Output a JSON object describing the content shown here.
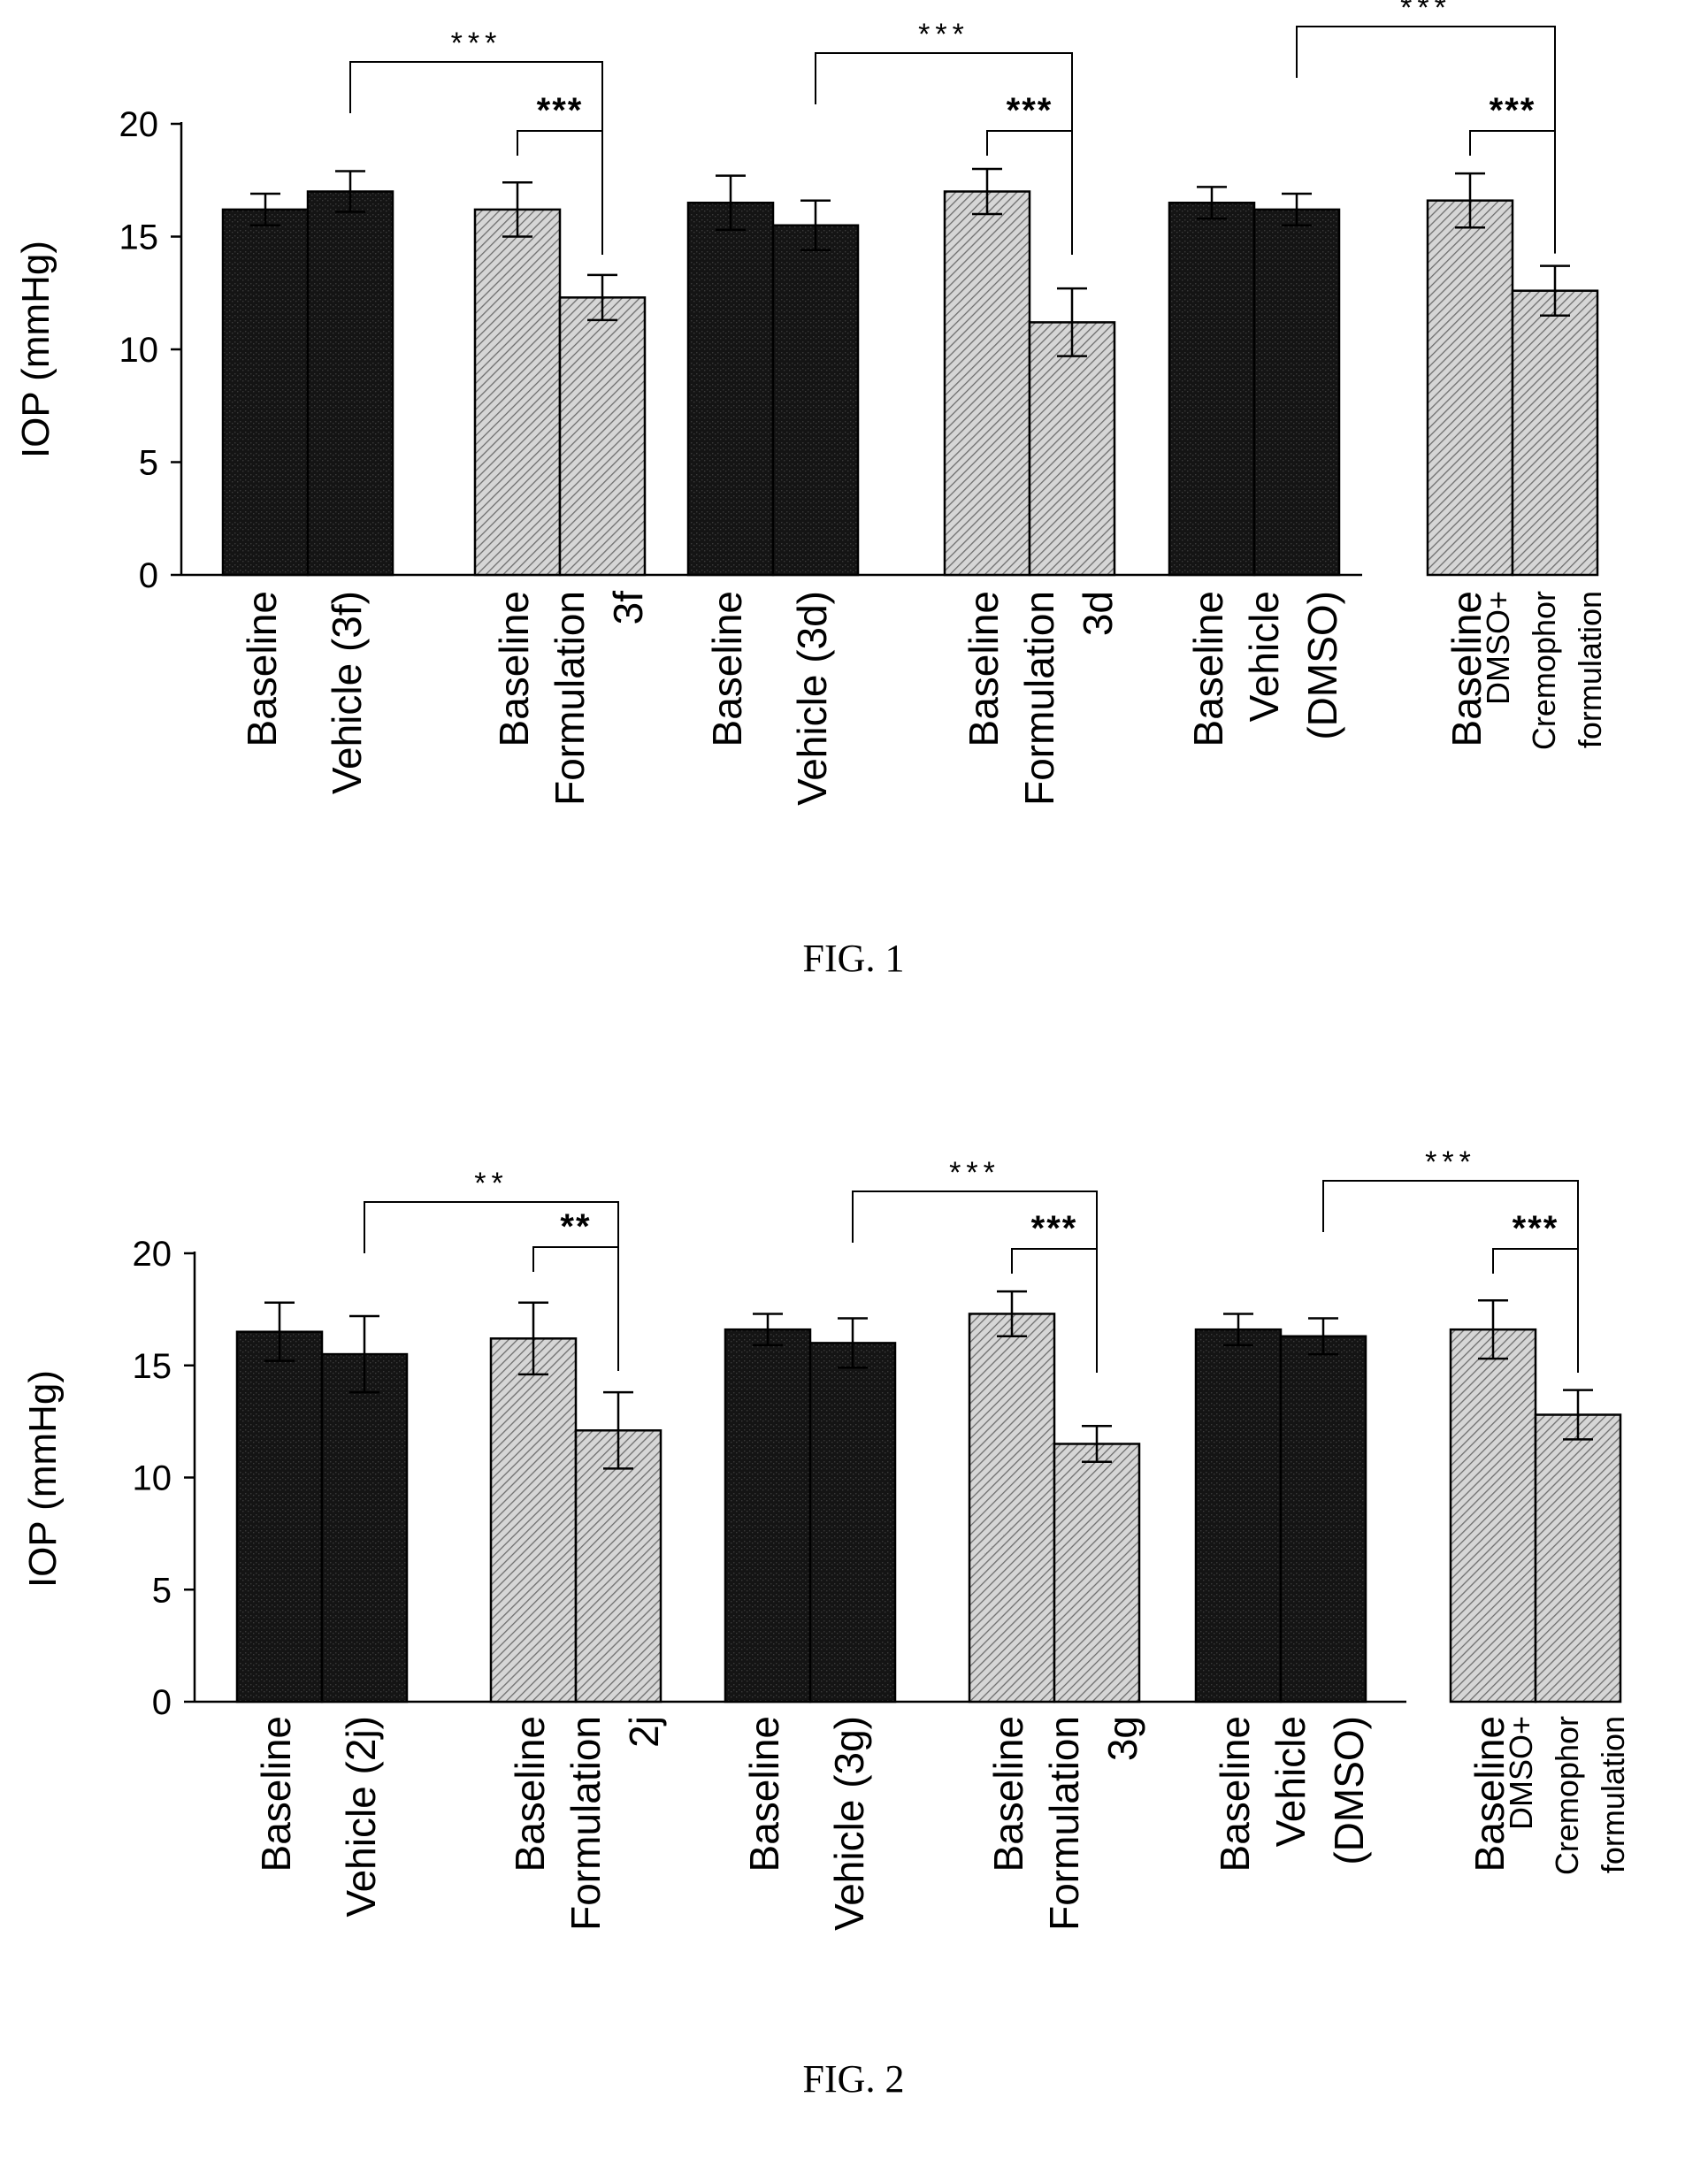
{
  "colors": {
    "vehicle": "#141414",
    "formulation": "#d6d6d6",
    "ink": "#000000"
  },
  "figures": [
    {
      "caption": "FIG. 1",
      "chart_data": {
        "type": "bar",
        "ylabel": "IOP (mmHg)",
        "ylim": [
          0,
          20
        ],
        "yticks": [
          "0",
          "5",
          "10",
          "15",
          "20"
        ],
        "grid": false,
        "legend": "none",
        "categories": [
          [
            "Baseline"
          ],
          [
            "Vehicle (3f)"
          ],
          [
            "Baseline"
          ],
          [
            "Formulation",
            "3f"
          ],
          [
            "Baseline"
          ],
          [
            "Vehicle (3d)"
          ],
          [
            "Baseline"
          ],
          [
            "Formulation",
            "3d"
          ],
          [
            "Baseline"
          ],
          [
            "Vehicle",
            "(DMSO)"
          ],
          [
            "Baseline"
          ],
          [
            "DMSO+",
            "Cremophor",
            "formulation"
          ]
        ],
        "values": [
          16.2,
          17.0,
          16.2,
          12.3,
          16.5,
          15.5,
          17.0,
          11.2,
          16.5,
          16.2,
          16.6,
          12.6
        ],
        "errors": [
          0.7,
          0.9,
          1.2,
          1.0,
          1.2,
          1.1,
          1.0,
          1.5,
          0.7,
          0.7,
          1.2,
          1.1
        ],
        "patterns": [
          "solid",
          "solid",
          "hatched",
          "hatched",
          "solid",
          "solid",
          "hatched",
          "hatched",
          "solid",
          "solid",
          "hatched",
          "hatched"
        ],
        "significance": [
          {
            "from": 1,
            "to": 3,
            "label": "***",
            "level": "outer"
          },
          {
            "from": 2,
            "to": 3,
            "label": "***",
            "level": "inner"
          },
          {
            "from": 5,
            "to": 7,
            "label": "***",
            "level": "outer"
          },
          {
            "from": 6,
            "to": 7,
            "label": "***",
            "level": "inner"
          },
          {
            "from": 9,
            "to": 11,
            "label": "***",
            "level": "outer"
          },
          {
            "from": 10,
            "to": 11,
            "label": "***",
            "level": "inner"
          }
        ]
      }
    },
    {
      "caption": "FIG. 2",
      "chart_data": {
        "type": "bar",
        "ylabel": "IOP (mmHg)",
        "ylim": [
          0,
          20
        ],
        "yticks": [
          "0",
          "5",
          "10",
          "15",
          "20"
        ],
        "grid": false,
        "legend": "none",
        "categories": [
          [
            "Baseline"
          ],
          [
            "Vehicle (2j)"
          ],
          [
            "Baseline"
          ],
          [
            "Formulation",
            "2j"
          ],
          [
            "Baseline"
          ],
          [
            "Vehicle (3g)"
          ],
          [
            "Baseline"
          ],
          [
            "Formulation",
            "3g"
          ],
          [
            "Baseline"
          ],
          [
            "Vehicle",
            "(DMSO)"
          ],
          [
            "Baseline"
          ],
          [
            "DMSO+",
            "Cremophor",
            "formulation"
          ]
        ],
        "values": [
          16.5,
          15.5,
          16.2,
          12.1,
          16.6,
          16.0,
          17.3,
          11.5,
          16.6,
          16.3,
          16.6,
          12.8
        ],
        "errors": [
          1.3,
          1.7,
          1.6,
          1.7,
          0.7,
          1.1,
          1.0,
          0.8,
          0.7,
          0.8,
          1.3,
          1.1
        ],
        "patterns": [
          "solid",
          "solid",
          "hatched",
          "hatched",
          "solid",
          "solid",
          "hatched",
          "hatched",
          "solid",
          "solid",
          "hatched",
          "hatched"
        ],
        "significance": [
          {
            "from": 1,
            "to": 3,
            "label": "**",
            "level": "outer"
          },
          {
            "from": 2,
            "to": 3,
            "label": "**",
            "level": "inner"
          },
          {
            "from": 5,
            "to": 7,
            "label": "***",
            "level": "outer"
          },
          {
            "from": 6,
            "to": 7,
            "label": "***",
            "level": "inner"
          },
          {
            "from": 9,
            "to": 11,
            "label": "***",
            "level": "outer"
          },
          {
            "from": 10,
            "to": 11,
            "label": "***",
            "level": "inner"
          }
        ]
      }
    }
  ]
}
